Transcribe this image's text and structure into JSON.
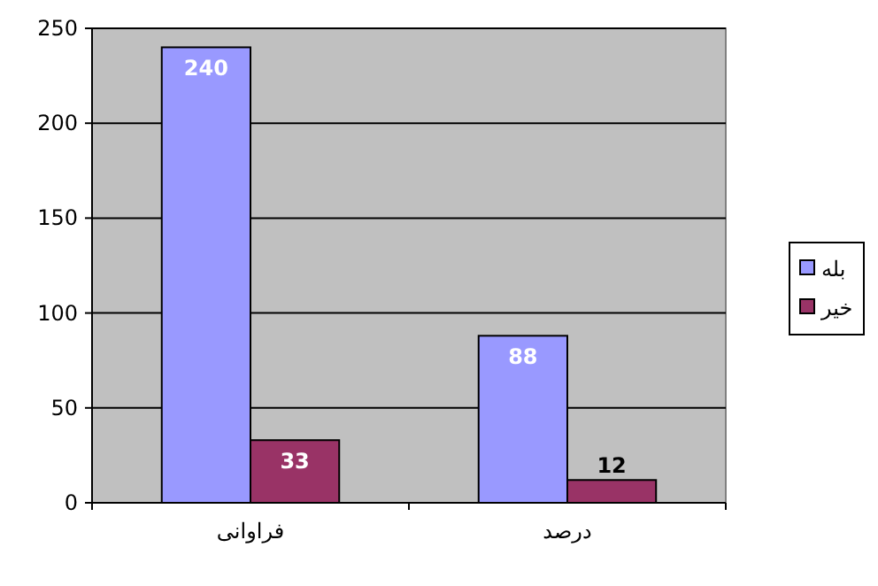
{
  "chart_data": {
    "type": "bar",
    "categories": [
      "فراوانی",
      "درصد"
    ],
    "series": [
      {
        "name": "بله",
        "color": "#9999ff",
        "values": [
          240,
          88
        ]
      },
      {
        "name": "خیر",
        "color": "#993366",
        "values": [
          33,
          12
        ]
      }
    ],
    "ylim": [
      0,
      250
    ],
    "yticks": [
      0,
      50,
      100,
      150,
      200,
      250
    ],
    "grid": "y",
    "legend": "right",
    "data_labels": true
  }
}
